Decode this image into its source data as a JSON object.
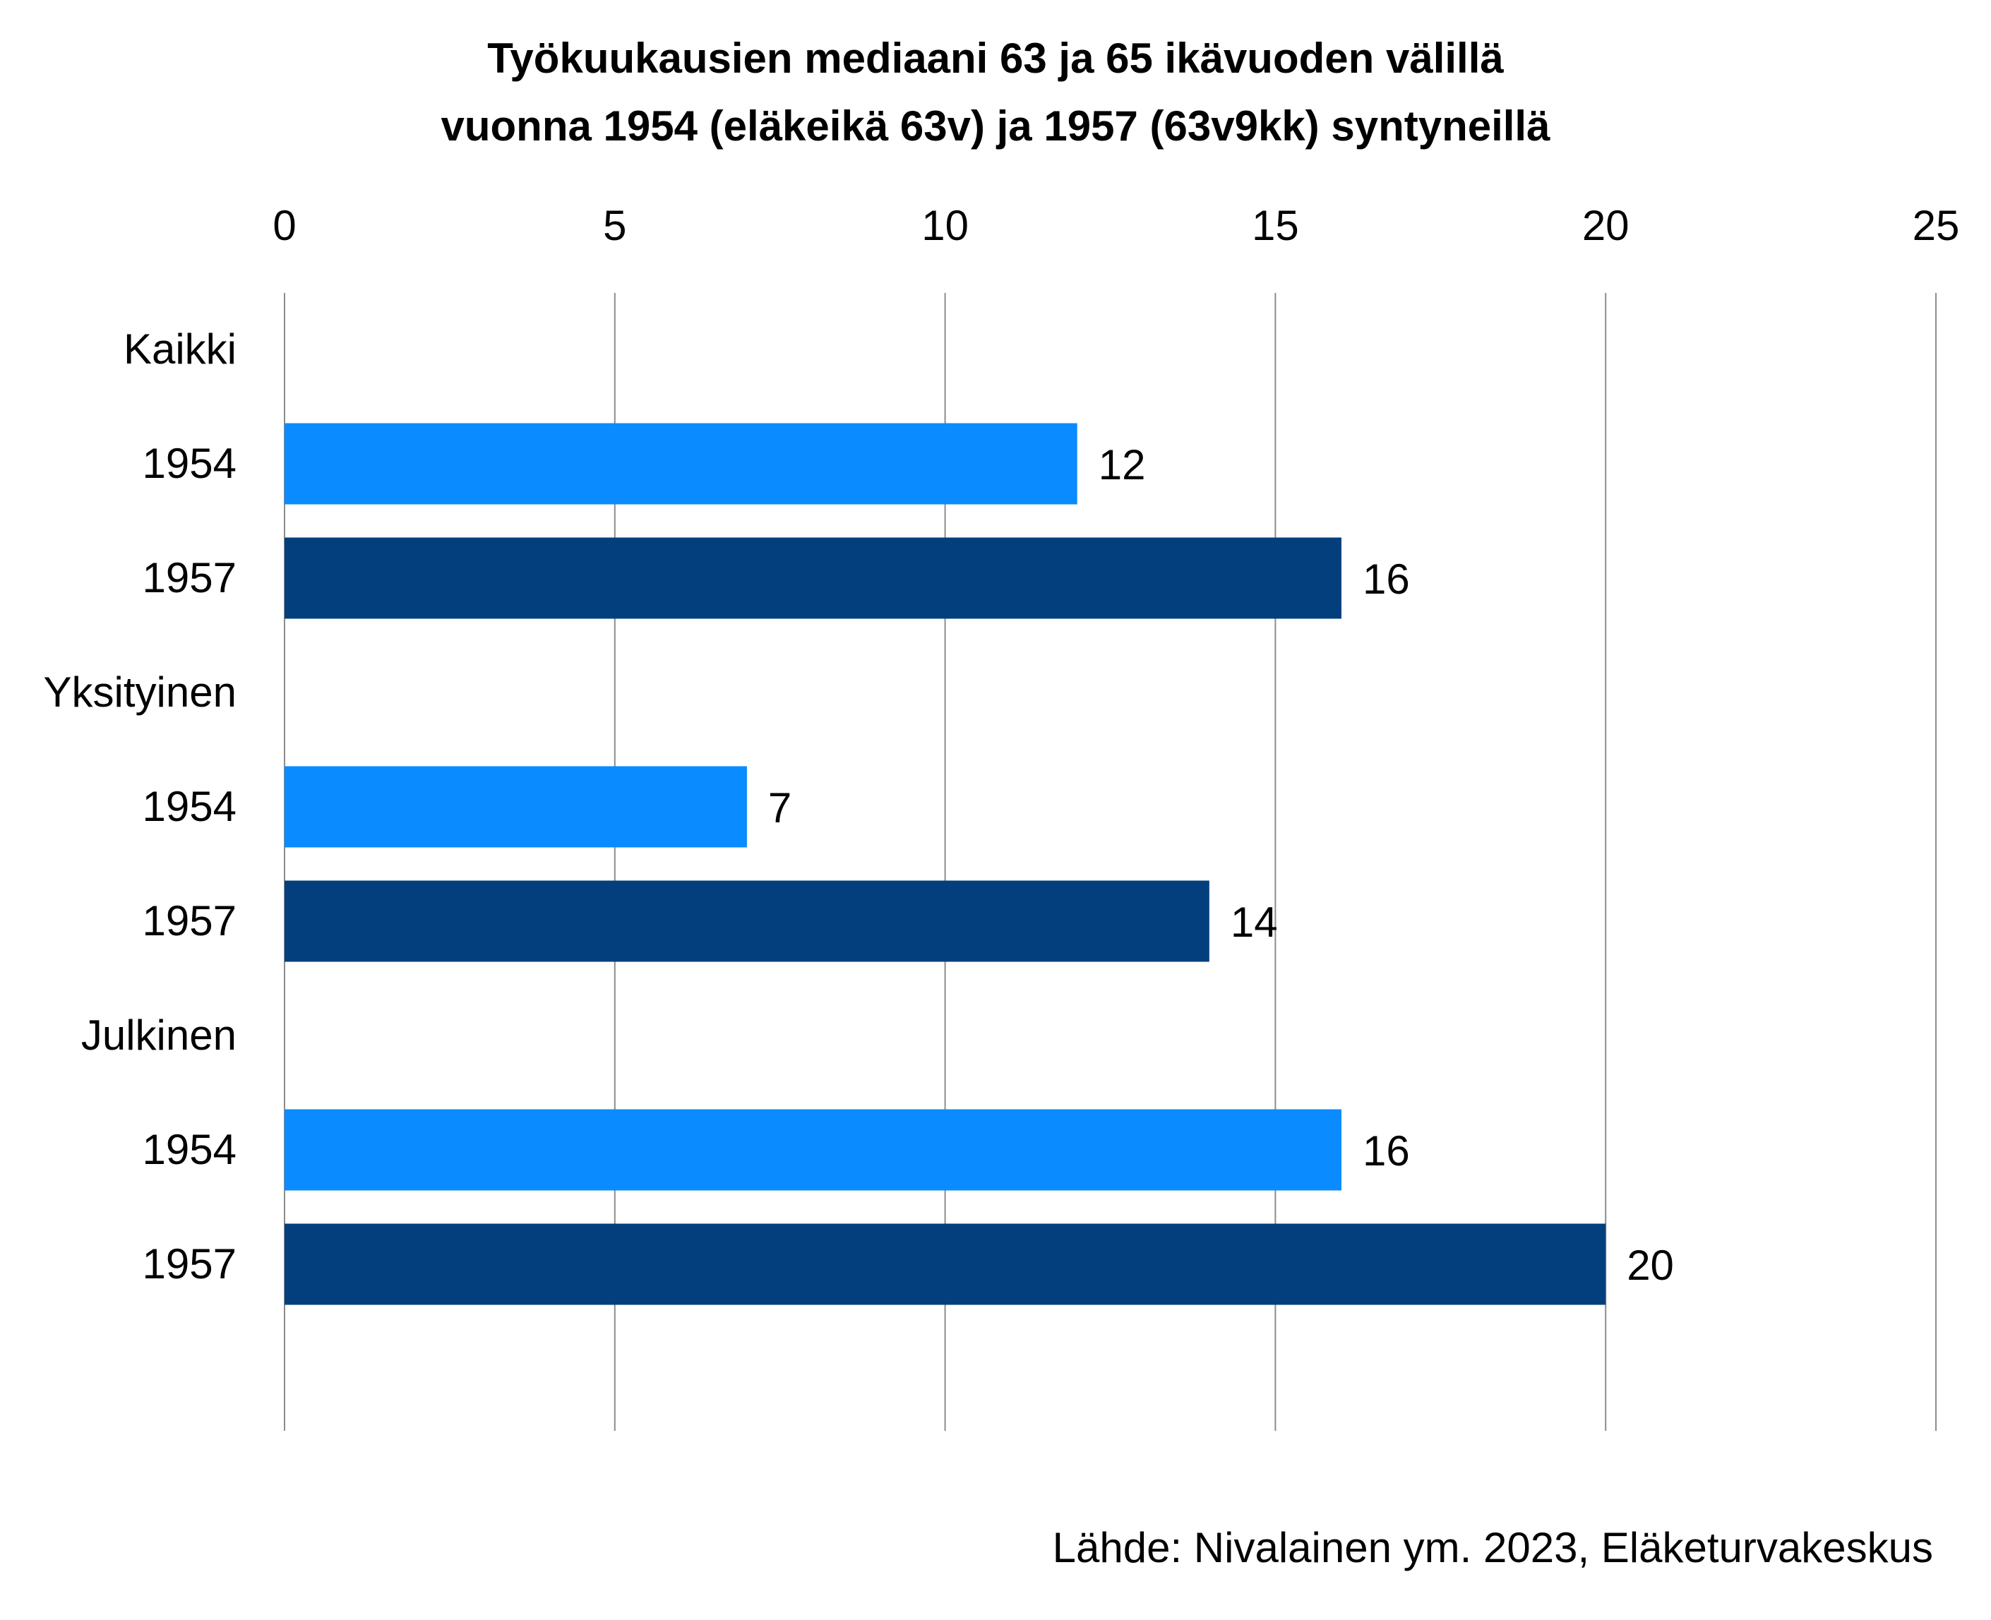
{
  "chart_data": {
    "type": "bar",
    "orientation": "horizontal",
    "title_lines": [
      "Työkuukausien mediaani 63 ja 65 ikävuoden välillä",
      "vuonna 1954 (eläkeikä 63v) ja 1957 (63v9kk) syntyneillä"
    ],
    "x_ticks": [
      "0",
      "5",
      "10",
      "15",
      "20",
      "25"
    ],
    "xlim": [
      0,
      25
    ],
    "x_axis_position": "top",
    "grid": true,
    "legend": "none",
    "groups": [
      {
        "label": "Kaikki",
        "bars": [
          {
            "label": "1954",
            "value": 12
          },
          {
            "label": "1957",
            "value": 16
          }
        ]
      },
      {
        "label": "Yksityinen",
        "bars": [
          {
            "label": "1954",
            "value": 7
          },
          {
            "label": "1957",
            "value": 14
          }
        ]
      },
      {
        "label": "Julkinen",
        "bars": [
          {
            "label": "1954",
            "value": 16
          },
          {
            "label": "1957",
            "value": 20
          }
        ]
      }
    ],
    "colors": {
      "1954": "#0a8bff",
      "1957": "#043f7d"
    },
    "source": "Lähde: Nivalainen ym. 2023, Eläketurvakeskus"
  }
}
